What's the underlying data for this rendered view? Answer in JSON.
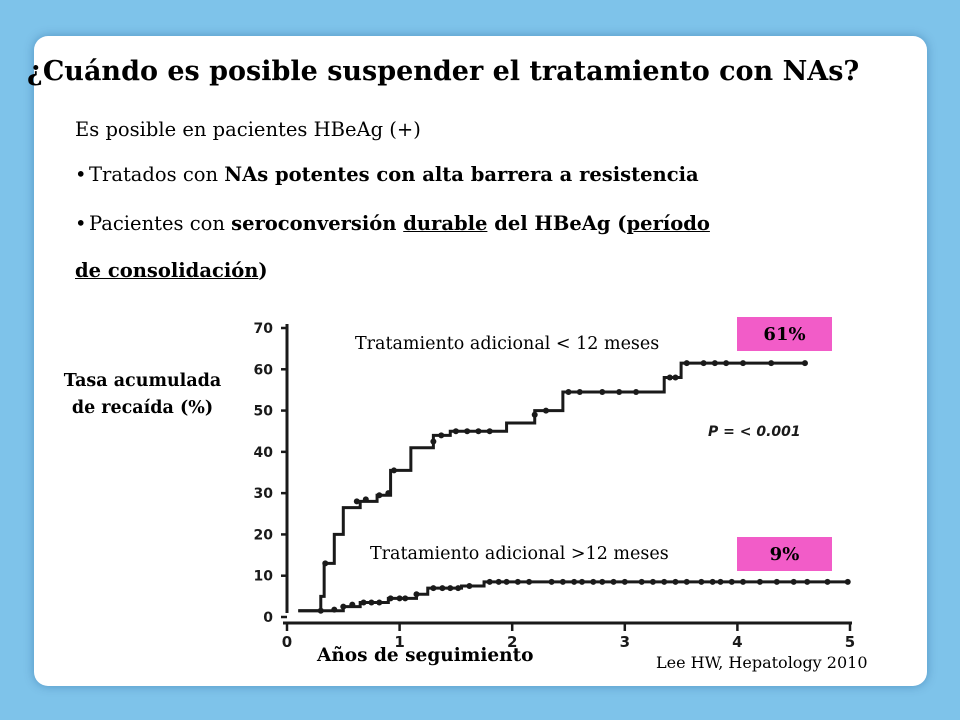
{
  "slide": {
    "title": "¿Cuándo es posible suspender el tratamiento con NAs?",
    "line1": "Es posible en pacientes HBeAg (+)",
    "bullet1": {
      "prefix": "Tratados con ",
      "bold": "NAs potentes con alta barrera a resistencia"
    },
    "bullet2": {
      "prefix": "Pacientes con  ",
      "bold1": "seroconversión ",
      "underline1": "durable",
      "bold2": " del  HBeAg (",
      "underline2": "período",
      "underline3": "de consolidación",
      "bold3": ")"
    },
    "citation": "Lee HW, Hepatology 2010"
  },
  "colors": {
    "background": "#7ec3ea",
    "badge": "#f25cc8",
    "line": "#1a1a1a"
  },
  "chart_data": {
    "type": "line",
    "ylabel": "Tasa acumulada de recaída (%)",
    "xlabel": "Años de seguimiento",
    "xlim": [
      0,
      5
    ],
    "ylim": [
      0,
      70
    ],
    "xticks": [
      "0",
      "1",
      "2",
      "3",
      "4",
      "5"
    ],
    "yticks": [
      "0",
      "10",
      "20",
      "30",
      "40",
      "50",
      "60",
      "70"
    ],
    "pvalue_label": "P = < 0.001",
    "series": [
      {
        "name": "Tratamiento adicional < 12 meses",
        "badge": "61%",
        "steps": [
          [
            0.1,
            1.5
          ],
          [
            0.3,
            5
          ],
          [
            0.33,
            13
          ],
          [
            0.42,
            20
          ],
          [
            0.5,
            26.5
          ],
          [
            0.65,
            28
          ],
          [
            0.8,
            29.5
          ],
          [
            0.92,
            35.5
          ],
          [
            1.1,
            41
          ],
          [
            1.3,
            44
          ],
          [
            1.45,
            45
          ],
          [
            1.7,
            45
          ],
          [
            1.95,
            47
          ],
          [
            2.2,
            50
          ],
          [
            2.35,
            50
          ],
          [
            2.45,
            54.5
          ],
          [
            2.75,
            54.5
          ],
          [
            3.0,
            54.5
          ],
          [
            3.35,
            58
          ],
          [
            3.5,
            61.5
          ],
          [
            3.6,
            61.5
          ]
        ],
        "markers": [
          [
            0.34,
            13
          ],
          [
            0.62,
            28
          ],
          [
            0.7,
            28.5
          ],
          [
            0.82,
            29.5
          ],
          [
            0.9,
            30
          ],
          [
            0.95,
            35.5
          ],
          [
            1.3,
            42.5
          ],
          [
            1.37,
            44
          ],
          [
            1.5,
            45
          ],
          [
            1.6,
            45
          ],
          [
            1.7,
            45
          ],
          [
            1.8,
            45
          ],
          [
            2.2,
            49
          ],
          [
            2.3,
            50
          ],
          [
            2.5,
            54.5
          ],
          [
            2.6,
            54.5
          ],
          [
            2.8,
            54.5
          ],
          [
            2.95,
            54.5
          ],
          [
            3.1,
            54.5
          ],
          [
            3.4,
            58
          ],
          [
            3.45,
            58
          ],
          [
            3.55,
            61.5
          ],
          [
            3.7,
            61.5
          ],
          [
            3.8,
            61.5
          ],
          [
            3.9,
            61.5
          ],
          [
            4.05,
            61.5
          ],
          [
            4.3,
            61.5
          ],
          [
            4.6,
            61.5
          ]
        ],
        "end_x": 4.6
      },
      {
        "name": "Tratamiento adicional >12 meses",
        "badge": "9%",
        "steps": [
          [
            0.1,
            1.5
          ],
          [
            0.5,
            2.5
          ],
          [
            0.65,
            3.5
          ],
          [
            0.9,
            4.5
          ],
          [
            1.15,
            5.5
          ],
          [
            1.25,
            7
          ],
          [
            1.55,
            7.5
          ],
          [
            1.75,
            8.5
          ],
          [
            2.2,
            8.5
          ],
          [
            5.0,
            8.5
          ]
        ],
        "markers": [
          [
            0.3,
            1.5
          ],
          [
            0.42,
            1.8
          ],
          [
            0.5,
            2.5
          ],
          [
            0.58,
            3
          ],
          [
            0.68,
            3.5
          ],
          [
            0.75,
            3.5
          ],
          [
            0.82,
            3.5
          ],
          [
            0.92,
            4.5
          ],
          [
            1.0,
            4.5
          ],
          [
            1.05,
            4.5
          ],
          [
            1.15,
            5.5
          ],
          [
            1.3,
            7
          ],
          [
            1.38,
            7
          ],
          [
            1.45,
            7
          ],
          [
            1.52,
            7
          ],
          [
            1.62,
            7.5
          ],
          [
            1.8,
            8.5
          ],
          [
            1.88,
            8.5
          ],
          [
            1.95,
            8.5
          ],
          [
            2.05,
            8.5
          ],
          [
            2.15,
            8.5
          ],
          [
            2.35,
            8.5
          ],
          [
            2.45,
            8.5
          ],
          [
            2.55,
            8.5
          ],
          [
            2.62,
            8.5
          ],
          [
            2.72,
            8.5
          ],
          [
            2.8,
            8.5
          ],
          [
            2.9,
            8.5
          ],
          [
            3.0,
            8.5
          ],
          [
            3.15,
            8.5
          ],
          [
            3.25,
            8.5
          ],
          [
            3.35,
            8.5
          ],
          [
            3.45,
            8.5
          ],
          [
            3.55,
            8.5
          ],
          [
            3.68,
            8.5
          ],
          [
            3.78,
            8.5
          ],
          [
            3.85,
            8.5
          ],
          [
            3.95,
            8.5
          ],
          [
            4.05,
            8.5
          ],
          [
            4.2,
            8.5
          ],
          [
            4.35,
            8.5
          ],
          [
            4.5,
            8.5
          ],
          [
            4.62,
            8.5
          ],
          [
            4.8,
            8.5
          ],
          [
            4.98,
            8.5
          ]
        ],
        "end_x": 5.0
      }
    ]
  }
}
